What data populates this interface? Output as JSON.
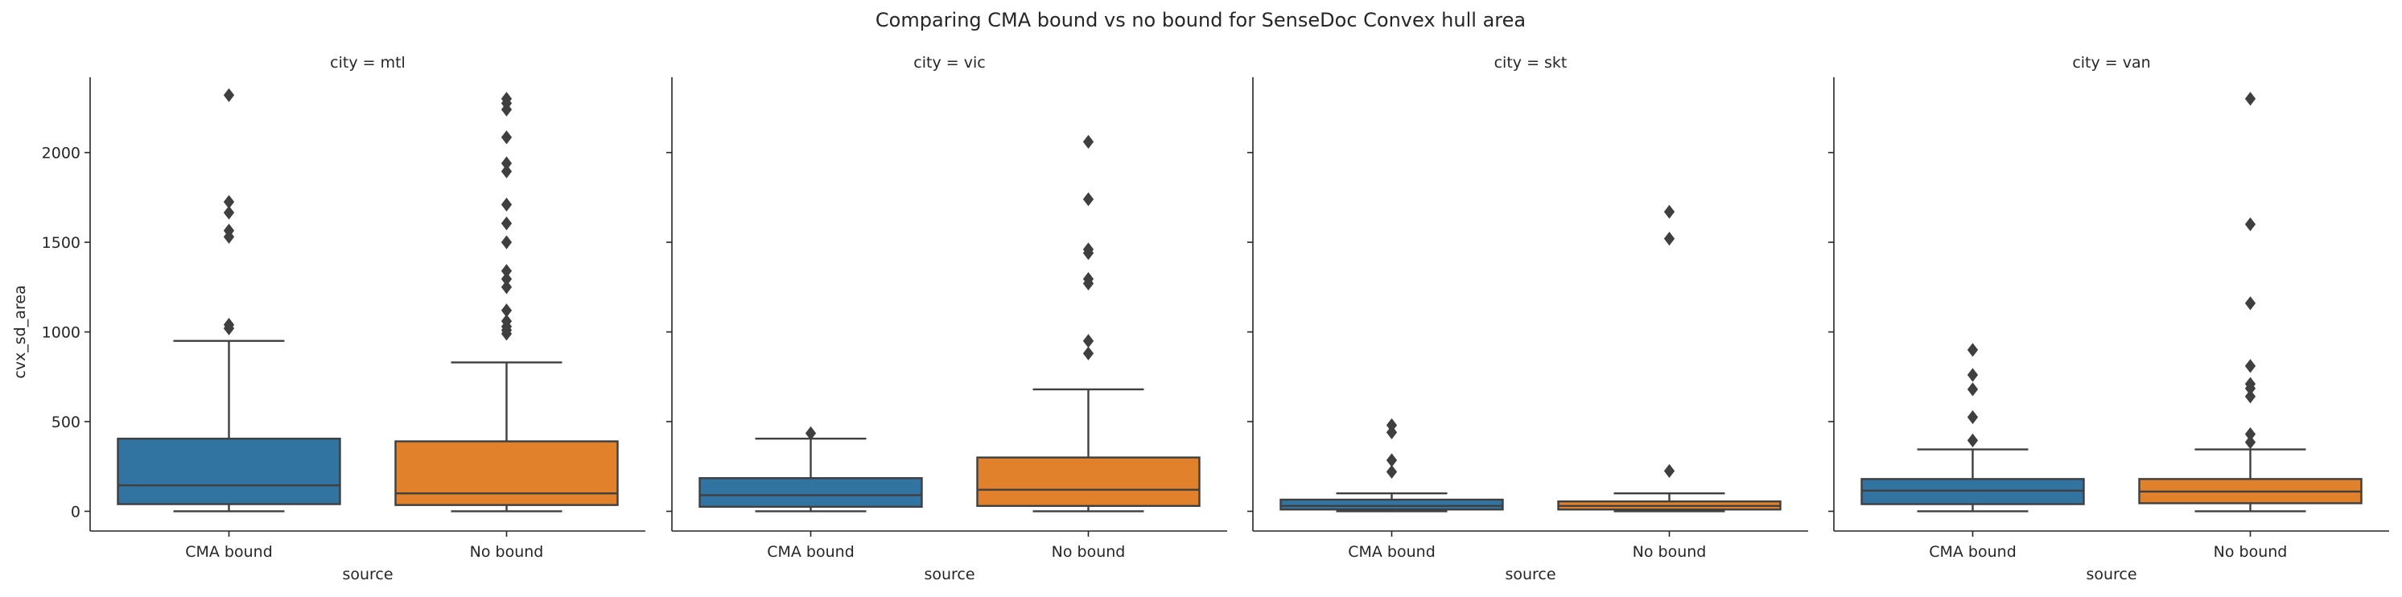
{
  "chart_data": {
    "type": "boxplot",
    "title": "Comparing CMA bound vs no bound for SenseDoc Convex hull area",
    "xlabel": "source",
    "ylabel": "cvx_sd_area",
    "ylim": [
      -110,
      2420
    ],
    "yticks": [
      0,
      500,
      1000,
      1500,
      2000
    ],
    "grid": false,
    "legend": "none",
    "categories": [
      "CMA bound",
      "No bound"
    ],
    "colors": {
      "CMA bound": "#3274a1",
      "No bound": "#e1812c"
    },
    "panels": [
      {
        "title": "city = mtl",
        "boxes": [
          {
            "category": "CMA bound",
            "whisker_low": 0,
            "q1": 40,
            "median": 145,
            "q3": 405,
            "whisker_high": 950,
            "outliers": [
              1020,
              1040,
              1530,
              1565,
              1665,
              1725,
              2320
            ]
          },
          {
            "category": "No bound",
            "whisker_low": 0,
            "q1": 35,
            "median": 100,
            "q3": 390,
            "whisker_high": 830,
            "outliers": [
              990,
              1010,
              1030,
              1060,
              1120,
              1250,
              1295,
              1340,
              1500,
              1605,
              1710,
              1895,
              1940,
              2085,
              2240,
              2275,
              2300
            ]
          }
        ]
      },
      {
        "title": "city = vic",
        "boxes": [
          {
            "category": "CMA bound",
            "whisker_low": 0,
            "q1": 25,
            "median": 90,
            "q3": 185,
            "whisker_high": 405,
            "outliers": [
              435
            ]
          },
          {
            "category": "No bound",
            "whisker_low": 0,
            "q1": 30,
            "median": 120,
            "q3": 300,
            "whisker_high": 680,
            "outliers": [
              880,
              950,
              1270,
              1295,
              1440,
              1460,
              1740,
              2060
            ]
          }
        ]
      },
      {
        "title": "city = skt",
        "boxes": [
          {
            "category": "CMA bound",
            "whisker_low": 0,
            "q1": 10,
            "median": 30,
            "q3": 65,
            "whisker_high": 100,
            "outliers": [
              220,
              285,
              440,
              480
            ]
          },
          {
            "category": "No bound",
            "whisker_low": 0,
            "q1": 10,
            "median": 30,
            "q3": 55,
            "whisker_high": 100,
            "outliers": [
              225,
              1520,
              1670
            ]
          }
        ]
      },
      {
        "title": "city = van",
        "boxes": [
          {
            "category": "CMA bound",
            "whisker_low": 0,
            "q1": 40,
            "median": 115,
            "q3": 180,
            "whisker_high": 345,
            "outliers": [
              395,
              525,
              680,
              760,
              900
            ]
          },
          {
            "category": "No bound",
            "whisker_low": 0,
            "q1": 45,
            "median": 110,
            "q3": 180,
            "whisker_high": 345,
            "outliers": [
              385,
              430,
              640,
              685,
              710,
              810,
              1160,
              1600,
              2300
            ]
          }
        ]
      }
    ]
  }
}
